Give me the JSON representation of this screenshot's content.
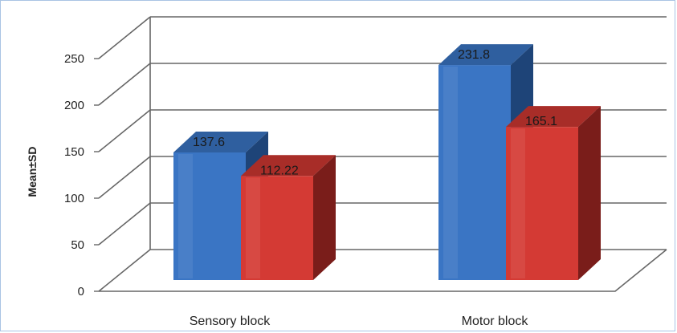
{
  "chart_data": {
    "type": "bar",
    "title": "",
    "xlabel": "",
    "ylabel": "Mean±SD",
    "ylim": [
      0,
      250
    ],
    "yticks": [
      0,
      50,
      100,
      150,
      200,
      250
    ],
    "categories": [
      "Sensory block",
      "Motor block"
    ],
    "series": [
      {
        "values": [
          137.6,
          231.8
        ],
        "labels": [
          "137.6",
          "231.8"
        ]
      },
      {
        "values": [
          112.22,
          165.1
        ],
        "labels": [
          "112.22",
          "165.1"
        ]
      }
    ],
    "grid": true,
    "legend": "none",
    "three_d": true,
    "colors": {
      "series": [
        "#3a75c4",
        "#d43a34"
      ],
      "series_top": [
        "#2f5f9f",
        "#a82d28"
      ],
      "series_side": [
        "#1e4478",
        "#7a1d1a"
      ],
      "grid": "#666666",
      "frame": "#a9c4e4"
    }
  }
}
